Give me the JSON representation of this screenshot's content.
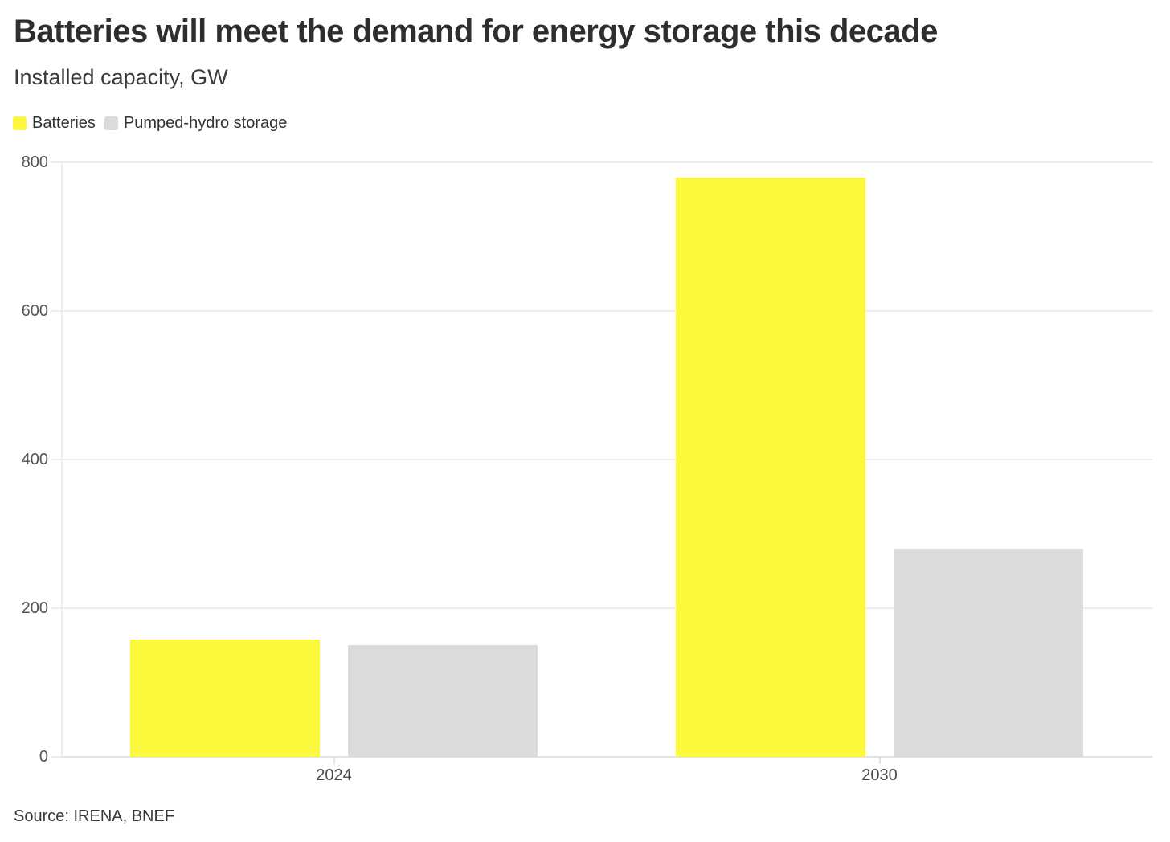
{
  "header": {
    "title": "Batteries will meet the demand for energy storage this decade",
    "subtitle": "Installed capacity, GW"
  },
  "legend": [
    {
      "label": "Batteries",
      "color": "#fdf83b"
    },
    {
      "label": "Pumped-hydro storage",
      "color": "#dbdbdb"
    }
  ],
  "source": "Source: IRENA, BNEF",
  "colors": {
    "batteries": "#fdf83b",
    "pumped_hydro": "#dbdbdb",
    "gridline": "#ededed",
    "baseline": "#e2e2e2",
    "title_text": "#2e2e2e",
    "tick_text": "#555555"
  },
  "chart_data": {
    "type": "bar",
    "title": "Batteries will meet the demand for energy storage this decade",
    "subtitle": "Installed capacity, GW",
    "categories": [
      "2024",
      "2030"
    ],
    "series": [
      {
        "name": "Batteries",
        "color": "#fdf83b",
        "values": [
          158,
          780
        ]
      },
      {
        "name": "Pumped-hydro storage",
        "color": "#dbdbdb",
        "values": [
          150,
          280
        ]
      }
    ],
    "xlabel": "",
    "ylabel": "Installed capacity, GW",
    "ylim": [
      0,
      800
    ],
    "y_ticks": [
      0,
      200,
      400,
      600,
      800
    ],
    "grid": "horizontal",
    "legend_position": "top-left",
    "source": "Source: IRENA, BNEF"
  }
}
